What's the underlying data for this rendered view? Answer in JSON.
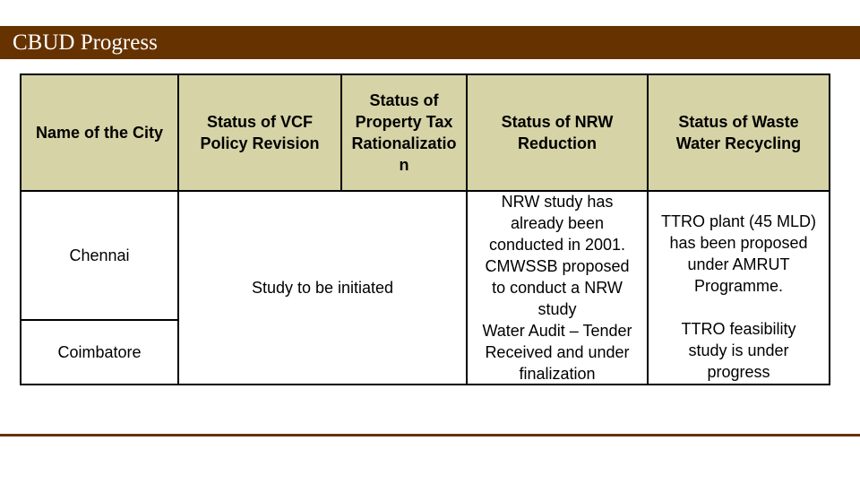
{
  "slide": {
    "title": "CBUD Progress"
  },
  "colors": {
    "title_bar": "#663300",
    "header_fill": "#d6d3a6",
    "border": "#000000"
  },
  "table": {
    "headers": {
      "city": "Name of the City",
      "vcf_line1": "Status of VCF",
      "vcf_line2": "Policy Revision",
      "ptax_line1": "Status of",
      "ptax_line2": "Property Tax",
      "ptax_line3": "Rationalizatio",
      "ptax_line4": "n",
      "nrw_line1": "Status of NRW",
      "nrw_line2": "Reduction",
      "ww_line1": "Status of Waste",
      "ww_line2": "Water Recycling"
    },
    "rows": {
      "chennai": {
        "city": "Chennai",
        "nrw": [
          "NRW study has",
          "already been",
          "conducted in 2001.",
          "CMWSSB proposed",
          "to conduct a NRW",
          "study"
        ],
        "ww": [
          "TTRO plant (45 MLD)",
          "has been proposed",
          "under AMRUT",
          "Programme."
        ]
      },
      "coimbatore": {
        "city": "Coimbatore",
        "nrw": [
          "Water Audit – Tender",
          "Received and under",
          "finalization"
        ],
        "ww": [
          "TTRO feasibility",
          "study is under",
          "progress"
        ]
      }
    },
    "merged_status": "Study to be initiated"
  }
}
